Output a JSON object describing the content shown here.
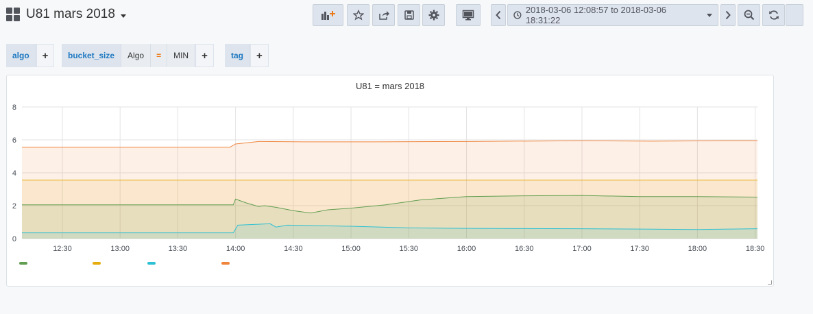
{
  "dashboard": {
    "title": "U81 mars 2018"
  },
  "toolbar": {
    "time_range": "2018-03-06 12:08:57 to 2018-03-06 18:31:22"
  },
  "variables": [
    {
      "label": "algo"
    },
    {
      "label": "bucket_size",
      "value": "Algo",
      "operator": "=",
      "operator_value": "MIN"
    },
    {
      "label": "tag"
    }
  ],
  "panel": {
    "title": "U81 = mars 2018"
  },
  "colors": {
    "green": "#629e51",
    "yellow": "#e5ac0e",
    "cyan": "#2cc0d3",
    "orange": "#ef843c",
    "grid": "#e3e3e3"
  },
  "chart_data": {
    "type": "area",
    "title": "U81 = mars 2018",
    "xlabel": "",
    "ylabel": "",
    "x_ticks": [
      "12:30",
      "13:00",
      "13:30",
      "14:00",
      "14:30",
      "15:00",
      "15:30",
      "16:00",
      "16:30",
      "17:00",
      "17:30",
      "18:00",
      "18:30"
    ],
    "y_ticks": [
      "0",
      "2",
      "4",
      "6",
      "8"
    ],
    "ylim": [
      0,
      8
    ],
    "xlim_minutes": [
      12.15,
      18.52
    ],
    "grid": true,
    "legend": "bottom-left",
    "series": [
      {
        "color": "orange",
        "values": [
          [
            12.15,
            5.55
          ],
          [
            13.95,
            5.55
          ],
          [
            14.0,
            5.75
          ],
          [
            14.2,
            5.9
          ],
          [
            14.6,
            5.88
          ],
          [
            15.2,
            5.88
          ],
          [
            16.0,
            5.9
          ],
          [
            17.0,
            5.95
          ],
          [
            17.6,
            5.92
          ],
          [
            18.2,
            5.95
          ],
          [
            18.52,
            5.95
          ]
        ]
      },
      {
        "color": "yellow",
        "values": [
          [
            12.15,
            3.55
          ],
          [
            18.52,
            3.55
          ]
        ]
      },
      {
        "color": "green",
        "values": [
          [
            12.15,
            2.05
          ],
          [
            13.98,
            2.05
          ],
          [
            14.0,
            2.4
          ],
          [
            14.1,
            2.15
          ],
          [
            14.2,
            1.95
          ],
          [
            14.25,
            2.0
          ],
          [
            14.35,
            1.9
          ],
          [
            14.5,
            1.7
          ],
          [
            14.65,
            1.55
          ],
          [
            14.8,
            1.75
          ],
          [
            15.0,
            1.85
          ],
          [
            15.3,
            2.05
          ],
          [
            15.6,
            2.35
          ],
          [
            16.0,
            2.55
          ],
          [
            16.5,
            2.6
          ],
          [
            17.0,
            2.62
          ],
          [
            17.5,
            2.55
          ],
          [
            18.0,
            2.55
          ],
          [
            18.52,
            2.52
          ]
        ]
      },
      {
        "color": "cyan",
        "values": [
          [
            12.15,
            0.35
          ],
          [
            13.98,
            0.35
          ],
          [
            14.02,
            0.82
          ],
          [
            14.3,
            0.9
          ],
          [
            14.35,
            0.7
          ],
          [
            14.45,
            0.82
          ],
          [
            15.0,
            0.75
          ],
          [
            15.5,
            0.65
          ],
          [
            16.0,
            0.62
          ],
          [
            17.0,
            0.6
          ],
          [
            17.5,
            0.58
          ],
          [
            18.0,
            0.55
          ],
          [
            18.52,
            0.6
          ]
        ]
      }
    ]
  }
}
